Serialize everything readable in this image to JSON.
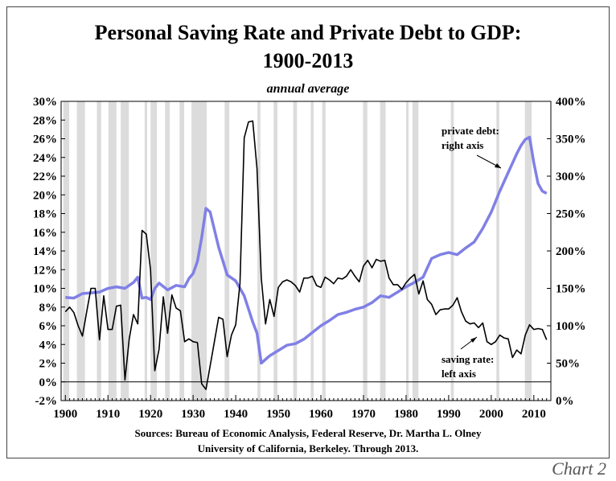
{
  "chart_data": {
    "type": "line",
    "title": "Personal Saving Rate and Private Debt to GDP:",
    "title_line2": "1900-2013",
    "subtitle": "annual average",
    "sources_line1": "Sources: Bureau of Economic Analysis, Federal Reserve, Dr. Martha L. Olney",
    "sources_line2": "University of California, Berkeley. Through 2013.",
    "corner_label": "Chart 2",
    "x_ticks": [
      "1900",
      "1910",
      "1920",
      "1930",
      "1940",
      "1950",
      "1960",
      "1970",
      "1980",
      "1990",
      "2000",
      "2010"
    ],
    "y_left_ticks": [
      "-2%",
      "0%",
      "2%",
      "4%",
      "6%",
      "8%",
      "10%",
      "12%",
      "14%",
      "16%",
      "18%",
      "20%",
      "22%",
      "24%",
      "26%",
      "28%",
      "30%"
    ],
    "y_right_ticks": [
      "0%",
      "50%",
      "100%",
      "150%",
      "200%",
      "250%",
      "300%",
      "350%",
      "400%"
    ],
    "x_range": [
      1899,
      2014
    ],
    "y_left_range": [
      -2,
      30
    ],
    "y_right_range": [
      0,
      400
    ],
    "recession_bands": [
      [
        1899.5,
        1900.9
      ],
      [
        1902.7,
        1904.6
      ],
      [
        1907.4,
        1908.4
      ],
      [
        1910.1,
        1912.0
      ],
      [
        1913.0,
        1914.9
      ],
      [
        1918.6,
        1919.2
      ],
      [
        1920.0,
        1921.5
      ],
      [
        1923.4,
        1924.5
      ],
      [
        1926.8,
        1927.9
      ],
      [
        1929.6,
        1933.2
      ],
      [
        1937.4,
        1938.5
      ],
      [
        1945.1,
        1945.8
      ],
      [
        1948.9,
        1949.8
      ],
      [
        1953.5,
        1954.4
      ],
      [
        1957.6,
        1958.3
      ],
      [
        1960.3,
        1961.1
      ],
      [
        1969.9,
        1970.9
      ],
      [
        1973.9,
        1975.2
      ],
      [
        1980.0,
        1980.6
      ],
      [
        1981.5,
        1982.9
      ],
      [
        1990.5,
        1991.2
      ],
      [
        2001.2,
        2001.9
      ],
      [
        2007.9,
        2009.5
      ]
    ],
    "series": [
      {
        "name": "private debt: right axis",
        "axis": "right",
        "color": "#8080e6",
        "x": [
          1900,
          1902,
          1904,
          1906,
          1908,
          1910,
          1912,
          1914,
          1916,
          1917,
          1918,
          1919,
          1920,
          1921,
          1922,
          1924,
          1926,
          1928,
          1929,
          1930,
          1931,
          1932,
          1933,
          1934,
          1936,
          1938,
          1940,
          1942,
          1944,
          1945,
          1946,
          1948,
          1950,
          1952,
          1954,
          1956,
          1958,
          1960,
          1962,
          1964,
          1966,
          1968,
          1970,
          1972,
          1974,
          1976,
          1978,
          1980,
          1982,
          1984,
          1986,
          1988,
          1990,
          1992,
          1994,
          1996,
          1998,
          2000,
          2002,
          2004,
          2006,
          2007,
          2008,
          2009,
          2010,
          2011,
          2012,
          2013
        ],
        "values": [
          138,
          137,
          143,
          144,
          145,
          150,
          152,
          150,
          158,
          165,
          137,
          138,
          135,
          150,
          157,
          148,
          154,
          152,
          163,
          170,
          186,
          218,
          257,
          252,
          205,
          168,
          160,
          140,
          105,
          90,
          50,
          60,
          67,
          74,
          76,
          82,
          91,
          100,
          107,
          115,
          118,
          122,
          125,
          131,
          140,
          138,
          145,
          152,
          158,
          165,
          190,
          195,
          198,
          195,
          204,
          212,
          230,
          252,
          280,
          305,
          330,
          341,
          349,
          352,
          318,
          290,
          280,
          277
        ]
      },
      {
        "name": "saving rate: left axis",
        "axis": "left",
        "color": "#000000",
        "x": [
          1900,
          1901,
          1902,
          1903,
          1904,
          1905,
          1906,
          1907,
          1908,
          1909,
          1910,
          1911,
          1912,
          1913,
          1914,
          1915,
          1916,
          1917,
          1918,
          1919,
          1920,
          1921,
          1922,
          1923,
          1924,
          1925,
          1926,
          1927,
          1928,
          1929,
          1930,
          1931,
          1932,
          1933,
          1934,
          1935,
          1936,
          1937,
          1938,
          1939,
          1940,
          1941,
          1942,
          1943,
          1944,
          1945,
          1946,
          1947,
          1948,
          1949,
          1950,
          1951,
          1952,
          1953,
          1954,
          1955,
          1956,
          1957,
          1958,
          1959,
          1960,
          1961,
          1962,
          1963,
          1964,
          1965,
          1966,
          1967,
          1968,
          1969,
          1970,
          1971,
          1972,
          1973,
          1974,
          1975,
          1976,
          1977,
          1978,
          1979,
          1980,
          1981,
          1982,
          1983,
          1984,
          1985,
          1986,
          1987,
          1988,
          1989,
          1990,
          1991,
          1992,
          1993,
          1994,
          1995,
          1996,
          1997,
          1998,
          1999,
          2000,
          2001,
          2002,
          2003,
          2004,
          2005,
          2006,
          2007,
          2008,
          2009,
          2010,
          2011,
          2012,
          2013
        ],
        "values": [
          7.5,
          8.0,
          7.4,
          6.0,
          4.9,
          7.5,
          10.0,
          10.0,
          4.5,
          9.2,
          5.6,
          5.6,
          8.1,
          8.2,
          0.2,
          4.6,
          7.2,
          6.2,
          16.2,
          15.8,
          12.0,
          1.2,
          3.5,
          9.1,
          5.2,
          9.3,
          7.9,
          7.6,
          4.3,
          4.6,
          4.3,
          4.2,
          -0.2,
          -0.8,
          1.7,
          4.3,
          6.9,
          6.7,
          2.7,
          5.0,
          6.1,
          10.5,
          26.1,
          27.8,
          27.9,
          22.8,
          11.1,
          6.2,
          8.8,
          7.0,
          10.1,
          10.7,
          10.9,
          10.7,
          10.3,
          9.6,
          11.1,
          11.1,
          11.3,
          10.3,
          10.1,
          11.2,
          10.9,
          10.5,
          11.1,
          11.0,
          11.3,
          12.0,
          11.3,
          10.7,
          12.4,
          13.0,
          12.2,
          13.1,
          12.9,
          13.0,
          11.1,
          10.4,
          10.4,
          9.9,
          10.6,
          11.1,
          11.5,
          9.4,
          10.8,
          8.8,
          8.3,
          7.2,
          7.7,
          7.8,
          7.8,
          8.2,
          9.0,
          7.5,
          6.5,
          6.2,
          6.3,
          5.8,
          6.3,
          4.3,
          4.0,
          4.3,
          5.0,
          4.7,
          4.6,
          2.6,
          3.4,
          3.0,
          5.0,
          6.1,
          5.6,
          5.7,
          5.6,
          4.5
        ]
      }
    ],
    "annotations": [
      {
        "lines": [
          "private debt:",
          "right axis"
        ]
      },
      {
        "lines": [
          "saving rate:",
          "left axis"
        ]
      }
    ],
    "colors": {
      "recession_band": "#dcdcdc",
      "debt_line": "#8080e6",
      "saving_line": "#000000",
      "zero_line": "#000000"
    }
  }
}
